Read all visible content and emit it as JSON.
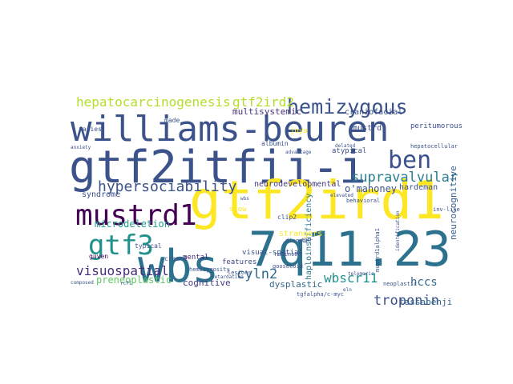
{
  "cloud": {
    "words": [
      {
        "text": "williams-beuren",
        "color": "#3b528b"
      },
      {
        "text": "gtf2itfii-i",
        "color": "#3b528b"
      },
      {
        "text": "gtf2ird1",
        "color": "#fde725"
      },
      {
        "text": "7q11.23",
        "color": "#2c728e"
      },
      {
        "text": "wbs",
        "color": "#2c728e"
      },
      {
        "text": "mustrd1",
        "color": "#440154"
      },
      {
        "text": "gtf3",
        "color": "#21918c"
      },
      {
        "text": "ben",
        "color": "#3b528b"
      },
      {
        "text": "hemizygous",
        "color": "#3b528b"
      },
      {
        "text": "hepatocarcinogenesis",
        "color": "#b5de2b"
      },
      {
        "text": "gtf2ird2",
        "color": "#b5de2b"
      },
      {
        "text": "hypersociability",
        "color": "#3b528b"
      },
      {
        "text": "supravalvular",
        "color": "#287d8e"
      },
      {
        "text": "visuospatial",
        "color": "#472d7b"
      },
      {
        "text": "troponin",
        "color": "#3b528b"
      },
      {
        "text": "cyln2",
        "color": "#31688e"
      },
      {
        "text": "wbscr11",
        "color": "#21918c"
      },
      {
        "text": "hccs",
        "color": "#31688e"
      },
      {
        "text": "preneoplastic",
        "color": "#5ec962"
      },
      {
        "text": "microdeletion",
        "color": "#1f9e89"
      },
      {
        "text": "o'mahoney",
        "color": "#3b528b"
      },
      {
        "text": "neurocognitive",
        "color": "#355f8d"
      },
      {
        "text": "cognitive",
        "color": "#443983"
      },
      {
        "text": "dysplastic",
        "color": "#31688e"
      },
      {
        "text": "tassabehji",
        "color": "#31688e"
      },
      {
        "text": "multisystemic",
        "color": "#46327e"
      },
      {
        "text": "haploinsufficiency",
        "color": "#2a788e"
      },
      {
        "text": "neurodevelopmental",
        "color": "#443983"
      },
      {
        "text": "craniofacial",
        "color": "#3b528b"
      },
      {
        "text": "mustrd",
        "color": "#3e4989"
      },
      {
        "text": "syndrome",
        "color": "#3b528b"
      },
      {
        "text": "hardeman",
        "color": "#3b528b"
      },
      {
        "text": "strangers",
        "color": "#fde725"
      },
      {
        "text": "visual-spatial",
        "color": "#3b528b"
      },
      {
        "text": "mental",
        "color": "#482878"
      },
      {
        "text": "features",
        "color": "#414487"
      },
      {
        "text": "atypical",
        "color": "#3b528b"
      },
      {
        "text": "peritumorous",
        "color": "#3b528b"
      },
      {
        "text": "joya",
        "color": "#fde725"
      },
      {
        "text": "slow",
        "color": "#fde725"
      },
      {
        "text": "albumin",
        "color": "#3b528b"
      },
      {
        "text": "facies",
        "color": "#3b528b"
      },
      {
        "text": "made",
        "color": "#3b528b"
      },
      {
        "text": "cream1",
        "color": "#3b528b"
      },
      {
        "text": "guven",
        "color": "#440154"
      },
      {
        "text": "typical",
        "color": "#3b528b"
      },
      {
        "text": "hemizygosity",
        "color": "#3b528b"
      },
      {
        "text": "robinson",
        "color": "#3b528b"
      },
      {
        "text": "clip2",
        "color": "#3b528b"
      },
      {
        "text": "disorder",
        "color": "#3b528b"
      },
      {
        "text": "goosecoid",
        "color": "#3b528b"
      },
      {
        "text": "lesions",
        "color": "#3b528b"
      },
      {
        "text": "neoplastic",
        "color": "#3b528b"
      },
      {
        "text": "hepatocellular",
        "color": "#3b528b"
      },
      {
        "text": "inv-like",
        "color": "#3b528b"
      },
      {
        "text": "behavioral",
        "color": "#3b528b"
      },
      {
        "text": "composed",
        "color": "#3b528b"
      },
      {
        "text": "retardation",
        "color": "#3b528b"
      },
      {
        "text": "tgfalpha/c-myc",
        "color": "#3b528b"
      },
      {
        "text": "anxiety",
        "color": "#3b528b"
      },
      {
        "text": "rcf1",
        "color": "#3b528b"
      },
      {
        "text": "delated",
        "color": "#3b528b"
      },
      {
        "text": "tgf",
        "color": "#3b528b"
      },
      {
        "text": "mustrd1alpha1",
        "color": "#3b528b"
      },
      {
        "text": "identification",
        "color": "#3b528b"
      },
      {
        "text": "elevated",
        "color": "#3b528b"
      },
      {
        "text": "eln",
        "color": "#3b528b"
      },
      {
        "text": "wbs",
        "color": "#3b528b"
      },
      {
        "text": "advantage",
        "color": "#3b528b"
      },
      {
        "text": "telomeric",
        "color": "#3b528b"
      }
    ]
  }
}
